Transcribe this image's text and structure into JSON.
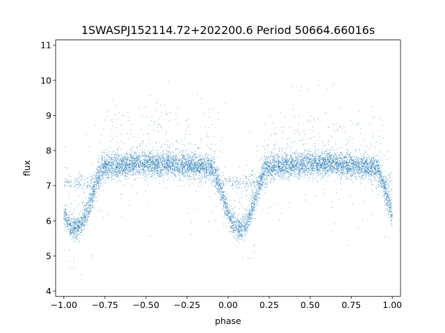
{
  "chart_data": {
    "type": "scatter",
    "title": "1SWASPJ152114.72+202200.6 Period 50664.66016s",
    "xlabel": "phase",
    "ylabel": "flux",
    "xlim": [
      -1.05,
      1.05
    ],
    "ylim": [
      3.85,
      11.15
    ],
    "xticks": [
      -1.0,
      -0.75,
      -0.5,
      -0.25,
      0.0,
      0.25,
      0.5,
      0.75,
      1.0
    ],
    "xtick_labels": [
      "−1.00",
      "−0.75",
      "−0.50",
      "−0.25",
      "0.00",
      "0.25",
      "0.50",
      "0.75",
      "1.00"
    ],
    "yticks": [
      4,
      5,
      6,
      7,
      8,
      9,
      10,
      11
    ],
    "ytick_labels": [
      "4",
      "5",
      "6",
      "7",
      "8",
      "9",
      "10",
      "11"
    ],
    "grid": false,
    "marker_color": "#1f77b4",
    "phase_range": [
      -1.0,
      1.0
    ],
    "baseline_flux": 7.55,
    "eclipse_phases": [
      -0.93,
      0.07
    ],
    "eclipse_min_flux": 5.85,
    "secondary_branch_flux": 7.1,
    "approx_point_count": 14000,
    "series": [
      {
        "curve_points": [
          {
            "x": -1.0,
            "y": 6.3
          },
          {
            "x": -0.97,
            "y": 5.95
          },
          {
            "x": -0.93,
            "y": 5.85
          },
          {
            "x": -0.88,
            "y": 6.0
          },
          {
            "x": -0.83,
            "y": 6.7
          },
          {
            "x": -0.78,
            "y": 7.2
          },
          {
            "x": -0.7,
            "y": 7.4
          },
          {
            "x": -0.6,
            "y": 7.5
          },
          {
            "x": -0.5,
            "y": 7.6
          },
          {
            "x": -0.4,
            "y": 7.6
          },
          {
            "x": -0.3,
            "y": 7.5
          },
          {
            "x": -0.2,
            "y": 7.35
          },
          {
            "x": -0.1,
            "y": 7.2
          },
          {
            "x": -0.03,
            "y": 6.7
          },
          {
            "x": 0.02,
            "y": 6.0
          },
          {
            "x": 0.07,
            "y": 5.85
          },
          {
            "x": 0.12,
            "y": 6.0
          },
          {
            "x": 0.17,
            "y": 6.7
          },
          {
            "x": 0.22,
            "y": 7.2
          },
          {
            "x": 0.3,
            "y": 7.4
          },
          {
            "x": 0.4,
            "y": 7.5
          },
          {
            "x": 0.5,
            "y": 7.6
          },
          {
            "x": 0.6,
            "y": 7.6
          },
          {
            "x": 0.7,
            "y": 7.5
          },
          {
            "x": 0.8,
            "y": 7.35
          },
          {
            "x": 0.9,
            "y": 7.2
          },
          {
            "x": 0.97,
            "y": 6.7
          },
          {
            "x": 1.0,
            "y": 6.3
          }
        ]
      }
    ]
  }
}
